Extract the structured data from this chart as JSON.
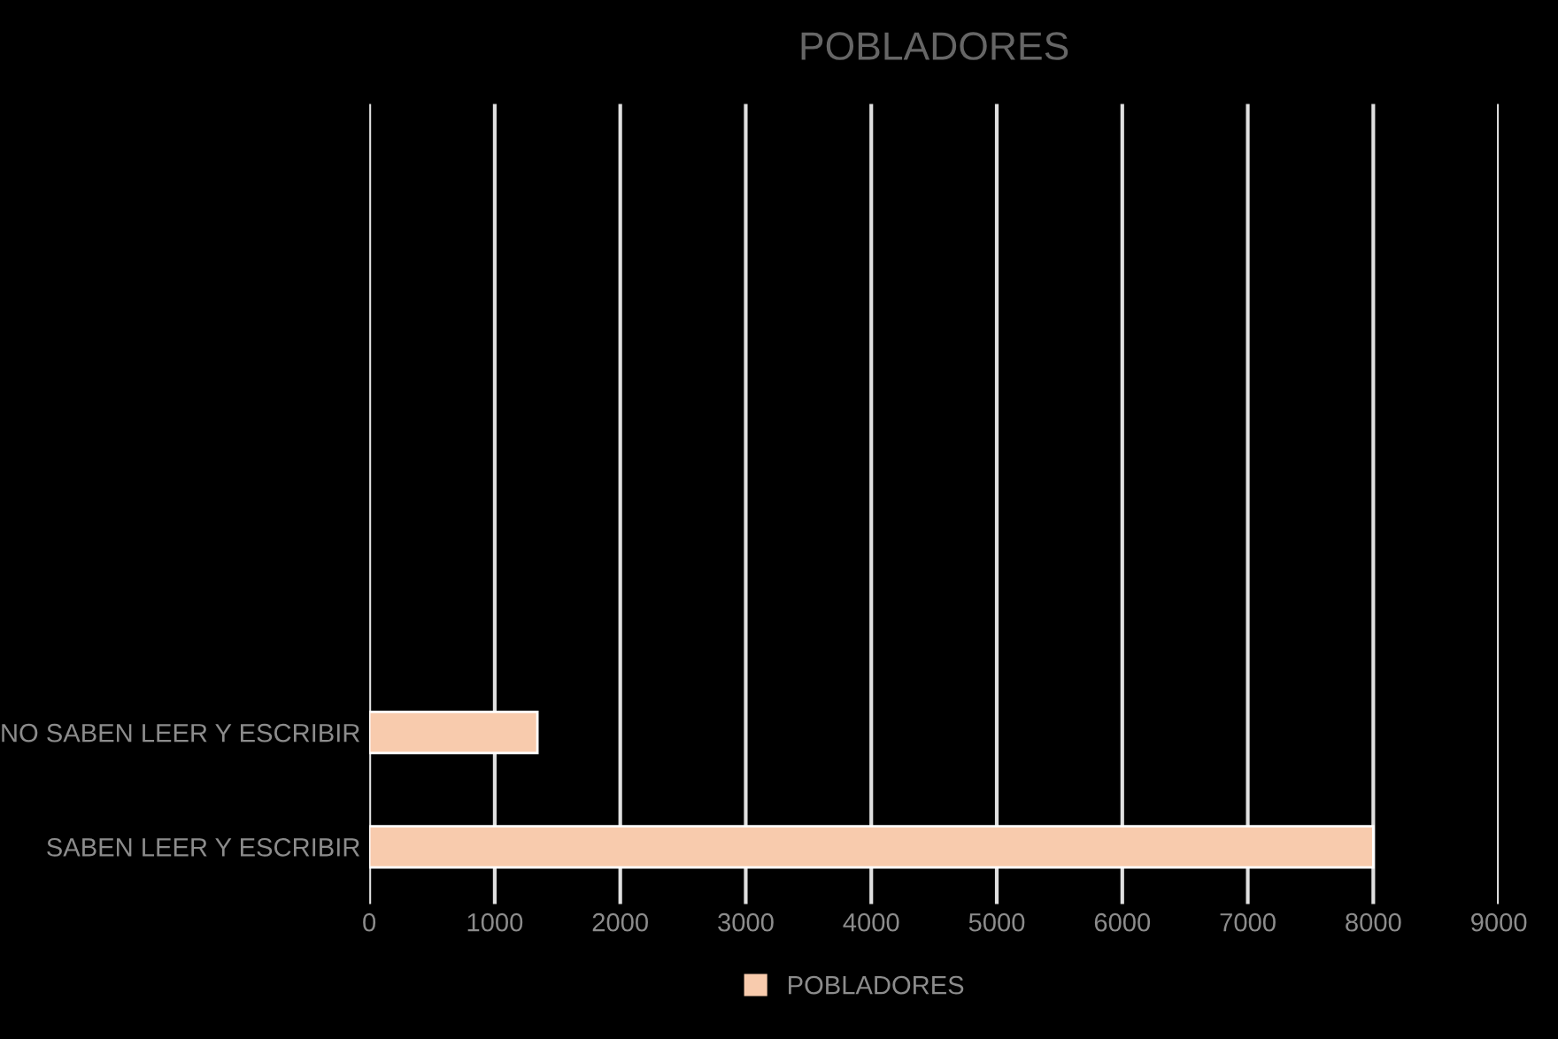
{
  "chart_data": {
    "type": "bar",
    "orientation": "horizontal",
    "title": "POBLADORES",
    "categories": [
      null,
      null,
      null,
      null,
      null,
      "NO SABEN LEER Y ESCRIBIR",
      "SABEN LEER Y ESCRIBIR"
    ],
    "series": [
      {
        "name": "POBLADORES",
        "color": "#f8cbad",
        "values": [
          null,
          null,
          null,
          null,
          null,
          1340,
          8000
        ]
      }
    ],
    "xlim": [
      0,
      9000
    ],
    "xticks": [
      0,
      1000,
      2000,
      3000,
      4000,
      5000,
      6000,
      7000,
      8000,
      9000
    ],
    "grid": "x",
    "legend": "bottom"
  }
}
